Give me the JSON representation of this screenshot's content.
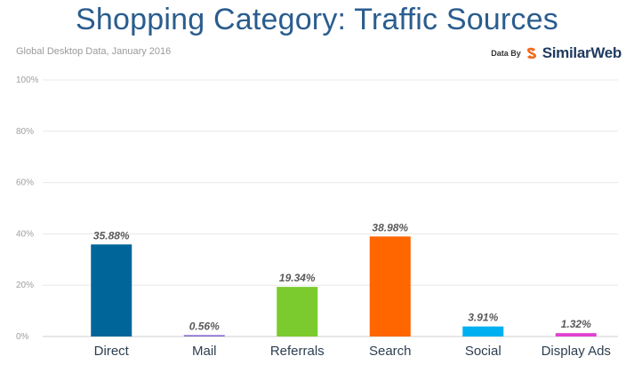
{
  "chart_data": {
    "type": "bar",
    "title": "Shopping Category: Traffic Sources",
    "subtitle": "Global Desktop Data, January 2016",
    "xlabel": "",
    "ylabel": "",
    "categories": [
      "Direct",
      "Mail",
      "Referrals",
      "Search",
      "Social",
      "Display Ads"
    ],
    "values": [
      35.88,
      0.56,
      19.34,
      38.98,
      3.91,
      1.32
    ],
    "data_labels": [
      "35.88%",
      "0.56%",
      "19.34%",
      "38.98%",
      "3.91%",
      "1.32%"
    ],
    "colors": [
      "#00669a",
      "#8a6bd1",
      "#7ccb2e",
      "#ff6600",
      "#00b0f0",
      "#e040d0"
    ],
    "ylim": [
      0,
      100
    ],
    "yticks": [
      0,
      20,
      40,
      60,
      80,
      100
    ],
    "ytick_labels": [
      "0%",
      "20%",
      "40%",
      "60%",
      "80%",
      "100%"
    ],
    "grid": true,
    "legend": "none"
  },
  "branding": {
    "prefix": "Data By",
    "name": "SimilarWeb",
    "logo_icon": "similarweb-logo-icon",
    "logo_colors": [
      "#f26a1b",
      "#1f3a5f"
    ]
  }
}
